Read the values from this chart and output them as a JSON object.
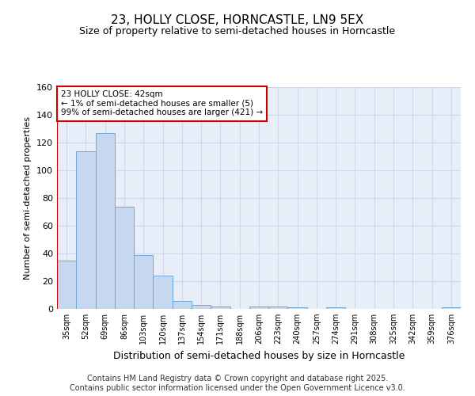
{
  "title": "23, HOLLY CLOSE, HORNCASTLE, LN9 5EX",
  "subtitle": "Size of property relative to semi-detached houses in Horncastle",
  "xlabel": "Distribution of semi-detached houses by size in Horncastle",
  "ylabel": "Number of semi-detached properties",
  "bar_labels": [
    "35sqm",
    "52sqm",
    "69sqm",
    "86sqm",
    "103sqm",
    "120sqm",
    "137sqm",
    "154sqm",
    "171sqm",
    "188sqm",
    "206sqm",
    "223sqm",
    "240sqm",
    "257sqm",
    "274sqm",
    "291sqm",
    "308sqm",
    "325sqm",
    "342sqm",
    "359sqm",
    "376sqm"
  ],
  "bar_values": [
    35,
    114,
    127,
    74,
    39,
    24,
    6,
    3,
    2,
    0,
    2,
    2,
    1,
    0,
    1,
    0,
    0,
    0,
    0,
    0,
    1
  ],
  "bar_color": "#c5d8f0",
  "bar_edgecolor": "#6fa8d8",
  "highlight_index": 0,
  "highlight_edgecolor": "#cc0000",
  "annotation_line1": "23 HOLLY CLOSE: 42sqm",
  "annotation_line2": "← 1% of semi-detached houses are smaller (5)",
  "annotation_line3": "99% of semi-detached houses are larger (421) →",
  "annotation_box_edgecolor": "#cc0000",
  "ylim": [
    0,
    160
  ],
  "yticks": [
    0,
    20,
    40,
    60,
    80,
    100,
    120,
    140,
    160
  ],
  "grid_color": "#d0d8e8",
  "background_color": "#e8eef8",
  "footer": "Contains HM Land Registry data © Crown copyright and database right 2025.\nContains public sector information licensed under the Open Government Licence v3.0.",
  "title_fontsize": 11,
  "subtitle_fontsize": 9,
  "footer_fontsize": 7
}
